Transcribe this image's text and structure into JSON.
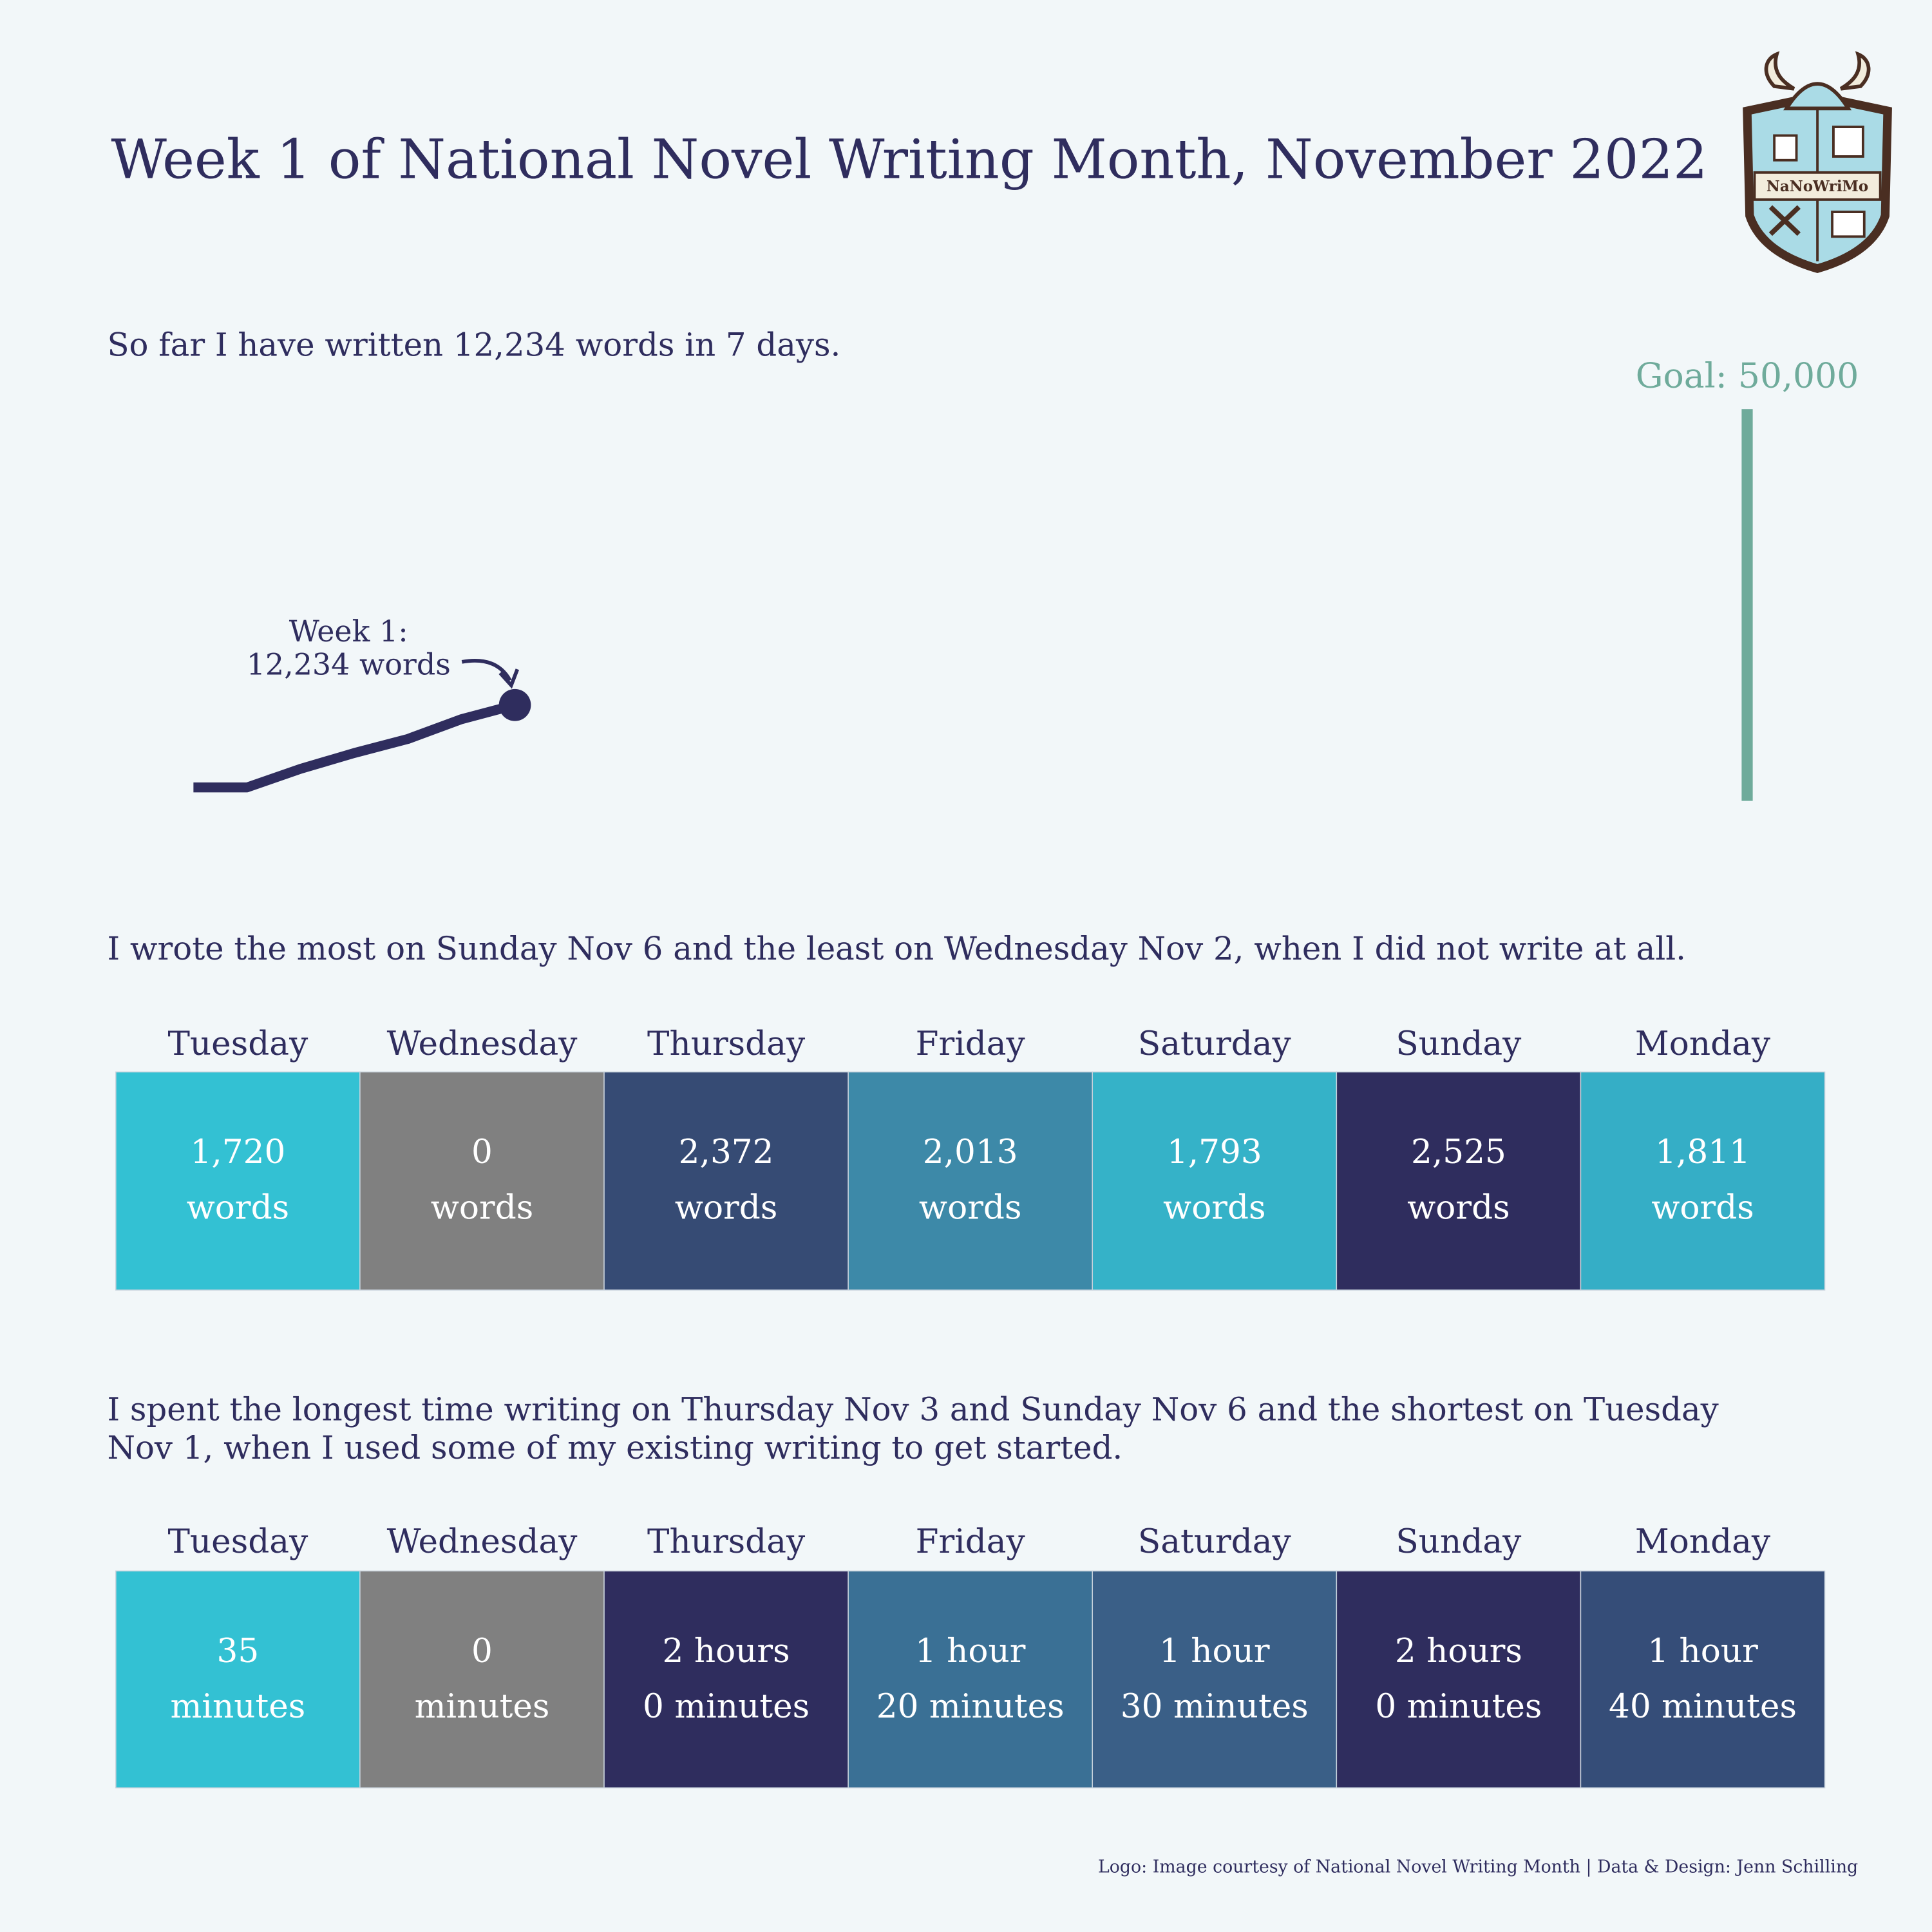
{
  "title": "Week 1 of National Novel Writing Month, November 2022",
  "logo_text": "NaNoWriMo",
  "footer": "Logo: Image courtesy of National Novel Writing Month | Data & Design: Jenn Schilling",
  "chart_data": [
    {
      "type": "line",
      "subtitle": [
        "So far I have written 12,234 words in 7 days."
      ],
      "x": [
        1,
        2,
        3,
        4,
        5,
        6,
        7
      ],
      "values": [
        1720,
        1720,
        4092,
        6105,
        7898,
        10423,
        12234
      ],
      "color": "#2f2d5e",
      "xlim": [
        1,
        30
      ],
      "ylim": [
        0,
        50000
      ],
      "annotation": [
        "Week 1:",
        "12,234 words"
      ],
      "goal": {
        "x": 30,
        "value": 50000,
        "label": "Goal: 50,000",
        "color": "#6fab9b"
      }
    },
    {
      "type": "tiles",
      "subtitle": [
        "I wrote the most on Sunday Nov 6 and the least on Wednesday Nov 2, when I did not write at all."
      ],
      "categories": [
        "Tuesday",
        "Wednesday",
        "Thursday",
        "Friday",
        "Saturday",
        "Sunday",
        "Monday"
      ],
      "values": [
        1720,
        0,
        2372,
        2013,
        1793,
        2525,
        1811
      ],
      "value_labels": [
        [
          "1,720",
          "words"
        ],
        [
          "0",
          "words"
        ],
        [
          "2,372",
          "words"
        ],
        [
          "2,013",
          "words"
        ],
        [
          "1,793",
          "words"
        ],
        [
          "2,525",
          "words"
        ],
        [
          "1,811",
          "words"
        ]
      ],
      "colors": [
        "#33c1d3",
        "#808080",
        "#364b74",
        "#3d89a8",
        "#35b2c8",
        "#2f2d5e",
        "#35aec6"
      ]
    },
    {
      "type": "tiles",
      "subtitle": [
        "I spent the longest time writing on Thursday Nov 3 and Sunday Nov 6 and the shortest on Tuesday",
        "Nov 1, when I used some of my existing writing to get started."
      ],
      "categories": [
        "Tuesday",
        "Wednesday",
        "Thursday",
        "Friday",
        "Saturday",
        "Sunday",
        "Monday"
      ],
      "values": [
        35,
        0,
        120,
        80,
        90,
        120,
        100
      ],
      "value_labels": [
        [
          "35",
          "minutes"
        ],
        [
          "0",
          "minutes"
        ],
        [
          "2 hours",
          "0 minutes"
        ],
        [
          "1 hour",
          "20 minutes"
        ],
        [
          "1 hour",
          "30 minutes"
        ],
        [
          "2 hours",
          "0 minutes"
        ],
        [
          "1 hour",
          "40 minutes"
        ]
      ],
      "colors": [
        "#33c1d3",
        "#808080",
        "#2f2d5e",
        "#3a7095",
        "#3a5f87",
        "#2f2d5e",
        "#354d78"
      ]
    }
  ]
}
